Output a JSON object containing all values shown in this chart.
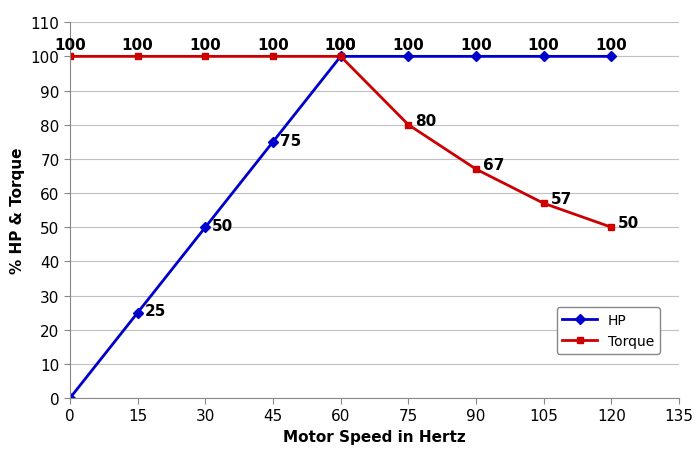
{
  "hp_x": [
    0,
    15,
    30,
    45,
    60,
    75,
    90,
    105,
    120
  ],
  "hp_y": [
    0,
    25,
    50,
    75,
    100,
    100,
    100,
    100,
    100
  ],
  "hp_labels": [
    "",
    "25",
    "50",
    "75",
    "100",
    "100",
    "100",
    "100",
    "100"
  ],
  "torque_x": [
    0,
    15,
    30,
    45,
    60,
    75,
    90,
    105,
    120
  ],
  "torque_y": [
    100,
    100,
    100,
    100,
    100,
    80,
    67,
    57,
    50
  ],
  "torque_labels": [
    "100",
    "100",
    "100",
    "100",
    "100",
    "80",
    "67",
    "57",
    "50"
  ],
  "hp_color": "#0000CD",
  "torque_color": "#CC0000",
  "hp_label": "HP",
  "torque_label": "Torque",
  "xlabel": "Motor Speed in Hertz",
  "ylabel": "% HP & Torque",
  "xlim": [
    0,
    135
  ],
  "ylim": [
    0,
    110
  ],
  "xticks": [
    0,
    15,
    30,
    45,
    60,
    75,
    90,
    105,
    120,
    135
  ],
  "yticks": [
    0,
    10,
    20,
    30,
    40,
    50,
    60,
    70,
    80,
    90,
    100,
    110
  ],
  "background_color": "#ffffff",
  "grid_color": "#c0c0c0",
  "marker_hp": "D",
  "marker_torque": "s",
  "marker_size": 5,
  "linewidth": 2.0,
  "label_fontsize": 11,
  "tick_fontsize": 11,
  "annot_fontsize": 11
}
